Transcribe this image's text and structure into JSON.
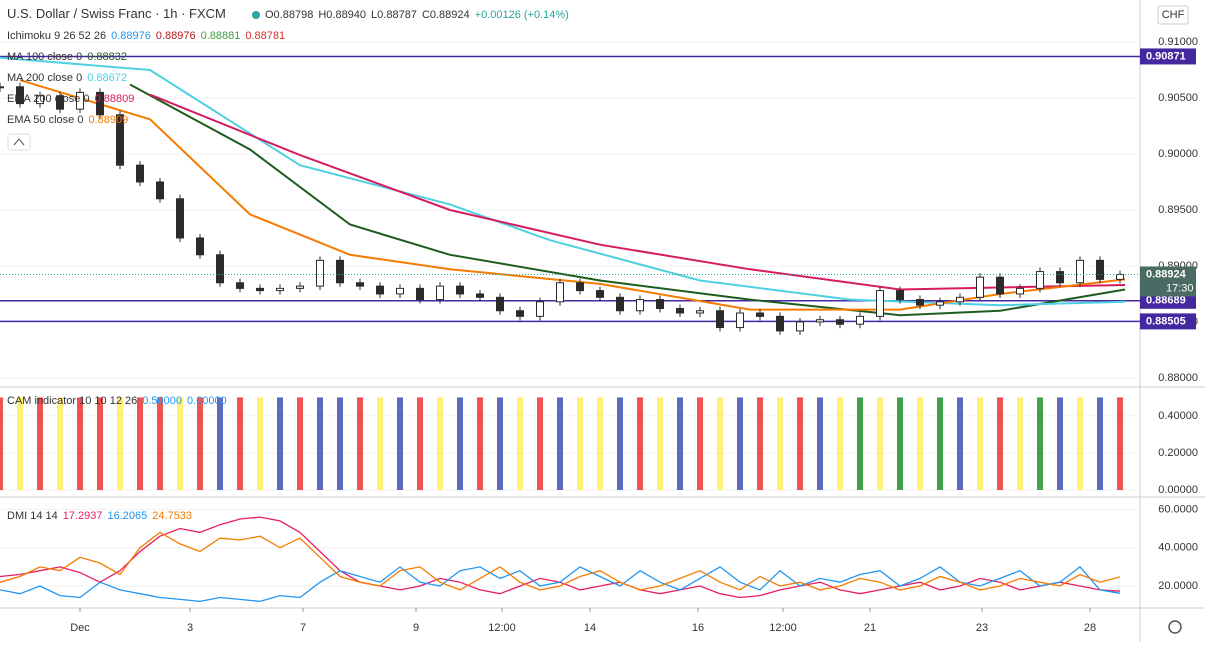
{
  "chart_data": [
    {
      "type": "candlestick",
      "title": "U.S. Dollar / Swiss Franc · 1h · FXCM",
      "ohlc": [
        "O0.88798",
        "H0.88940",
        "L0.88787",
        "C0.88924",
        "+0.00126 (+0.14%)"
      ],
      "currency": "CHF",
      "candle_color": "#2b2b2b",
      "close": [
        0.906,
        0.9045,
        0.9052,
        0.904,
        0.9055,
        0.9035,
        0.899,
        0.8975,
        0.896,
        0.8925,
        0.891,
        0.8885,
        0.888,
        0.8878,
        0.888,
        0.8882,
        0.8905,
        0.8885,
        0.8882,
        0.8875,
        0.888,
        0.887,
        0.8882,
        0.8875,
        0.8872,
        0.886,
        0.8855,
        0.8868,
        0.8885,
        0.8878,
        0.8872,
        0.886,
        0.887,
        0.8862,
        0.8858,
        0.886,
        0.8845,
        0.8858,
        0.8855,
        0.8842,
        0.885,
        0.8852,
        0.8848,
        0.8855,
        0.8878,
        0.887,
        0.8865,
        0.8868,
        0.8872,
        0.889,
        0.8875,
        0.888,
        0.8895,
        0.8885,
        0.8905,
        0.8888,
        0.88924
      ],
      "last_time": "17:30",
      "xlim": [
        0,
        57
      ],
      "ylim": [
        0.87937,
        0.91375
      ],
      "yticks": [
        {
          "value": 0.88,
          "label": "0.88000"
        },
        {
          "value": 0.885,
          "label": "0.88500"
        },
        {
          "value": 0.89,
          "label": "0.89000"
        },
        {
          "value": 0.895,
          "label": "0.89500"
        },
        {
          "value": 0.9,
          "label": "0.90000"
        },
        {
          "value": 0.905,
          "label": "0.90500"
        },
        {
          "value": 0.91,
          "label": "0.91000"
        }
      ],
      "levels": [
        0.90871,
        0.88689,
        0.88505
      ],
      "level_color": "#4527a0",
      "ichimoku": {
        "name": "Ichimoku 9 26 52 26",
        "readings": [
          "0.88976",
          "0.88976",
          "0.88881",
          "0.88781"
        ],
        "colors": [
          "#2196f3",
          "#b71c1c",
          "#43a047",
          "#d32f2f"
        ]
      },
      "series": [
        {
          "name": "MA 100 close 0",
          "reading": "0.88832",
          "color": "#1e5c1e",
          "x": [
            6.5,
            12.5,
            17.5,
            22.5,
            30,
            37.5,
            45,
            50,
            56.25
          ],
          "values": [
            0.9062,
            0.9004,
            0.8937,
            0.891,
            0.8887,
            0.887,
            0.8856,
            0.886,
            0.8879
          ]
        },
        {
          "name": "MA 200 close 0",
          "reading": "0.88672",
          "color": "#4dd0e1",
          "x": [
            0,
            7.5,
            15,
            22.5,
            27.5,
            35,
            42.5,
            50,
            56.25
          ],
          "values": [
            0.9086,
            0.9075,
            0.899,
            0.8955,
            0.8923,
            0.8887,
            0.887,
            0.8865,
            0.8868
          ]
        },
        {
          "name": "EMA 200 close 0",
          "reading": "0.88809",
          "color": "#d81b60",
          "x": [
            7.5,
            15,
            22.5,
            30,
            37.5,
            45,
            56.25
          ],
          "values": [
            0.9053,
            0.8999,
            0.895,
            0.8919,
            0.8897,
            0.8879,
            0.8883
          ]
        },
        {
          "name": "EMA 50 close 0",
          "reading": "0.88909",
          "color": "#f57c00",
          "x": [
            1,
            7.5,
            12.5,
            17.5,
            22.5,
            30,
            37.5,
            45,
            50,
            56.25
          ],
          "values": [
            0.9066,
            0.9031,
            0.8946,
            0.891,
            0.8897,
            0.8884,
            0.8861,
            0.8861,
            0.8875,
            0.8888
          ]
        }
      ]
    },
    {
      "type": "bar",
      "title": "CAM indicator 10 10 12 26",
      "readings": [
        "0.50000",
        "0.00000"
      ],
      "reading_color": "#2196f3",
      "xlim": [
        0,
        57
      ],
      "ylim": [
        -0.027,
        0.54
      ],
      "yticks": [
        {
          "value": 0,
          "label": "0.00000"
        },
        {
          "value": 0.2,
          "label": "0.20000"
        },
        {
          "value": 0.4,
          "label": "0.40000"
        }
      ],
      "values": [
        0.5,
        0.5,
        0.5,
        0.5,
        0.5,
        0.5,
        0.5,
        0.5,
        0.5,
        0.5,
        0.5,
        0.5,
        0.5,
        0.5,
        0.5,
        0.5,
        0.5,
        0.5,
        0.5,
        0.5,
        0.5,
        0.5,
        0.5,
        0.5,
        0.5,
        0.5,
        0.5,
        0.5,
        0.5,
        0.5,
        0.5,
        0.5,
        0.5,
        0.5,
        0.5,
        0.5,
        0.5,
        0.5,
        0.5,
        0.5,
        0.5,
        0.5,
        0.5,
        0.5,
        0.5,
        0.5,
        0.5,
        0.5,
        0.5,
        0.5,
        0.5,
        0.5,
        0.5,
        0.5,
        0.5,
        0.5,
        0.5
      ],
      "colors": [
        "#ef5350",
        "#fff176",
        "#ef5350",
        "#fff176",
        "#ef5350",
        "#ef5350",
        "#fff176",
        "#ef5350",
        "#ef5350",
        "#fff176",
        "#ef5350",
        "#5c6bc0",
        "#ef5350",
        "#fff176",
        "#5c6bc0",
        "#ef5350",
        "#5c6bc0",
        "#5c6bc0",
        "#ef5350",
        "#fff176",
        "#5c6bc0",
        "#ef5350",
        "#fff176",
        "#5c6bc0",
        "#ef5350",
        "#5c6bc0",
        "#fff176",
        "#ef5350",
        "#5c6bc0",
        "#fff176",
        "#fff176",
        "#5c6bc0",
        "#ef5350",
        "#fff176",
        "#5c6bc0",
        "#ef5350",
        "#fff176",
        "#5c6bc0",
        "#ef5350",
        "#fff176",
        "#ef5350",
        "#5c6bc0",
        "#fff176",
        "#43a047",
        "#fff176",
        "#43a047",
        "#fff176",
        "#43a047",
        "#5c6bc0",
        "#fff176",
        "#ef5350",
        "#fff176",
        "#43a047",
        "#5c6bc0",
        "#fff176",
        "#5c6bc0",
        "#ef5350"
      ]
    },
    {
      "type": "line",
      "title": "DMI 14 14",
      "xlim": [
        0,
        57
      ],
      "ylim": [
        10.1,
        64.9
      ],
      "yticks": [
        {
          "value": 20,
          "label": "20.0000"
        },
        {
          "value": 40,
          "label": "40.0000"
        },
        {
          "value": 60,
          "label": "60.0000"
        }
      ],
      "xticks": [
        {
          "value": 4,
          "label": "Dec"
        },
        {
          "value": 9.5,
          "label": "3"
        },
        {
          "value": 15.15,
          "label": "7"
        },
        {
          "value": 20.8,
          "label": "9"
        },
        {
          "value": 25.1,
          "label": "12:00"
        },
        {
          "value": 29.5,
          "label": "14"
        },
        {
          "value": 34.9,
          "label": "16"
        },
        {
          "value": 39.15,
          "label": "12:00"
        },
        {
          "value": 43.5,
          "label": "21"
        },
        {
          "value": 49.1,
          "label": "23"
        },
        {
          "value": 54.5,
          "label": "28"
        }
      ],
      "series": [
        {
          "name": "17.2937",
          "color": "#e91e63",
          "values": [
            25,
            26,
            28,
            30,
            27,
            22,
            28,
            38,
            46,
            50,
            48,
            52,
            55,
            56,
            54,
            48,
            38,
            28,
            22,
            20,
            18,
            20,
            24,
            22,
            18,
            16,
            20,
            24,
            22,
            18,
            20,
            22,
            18,
            16,
            18,
            20,
            16,
            14,
            15,
            18,
            20,
            22,
            18,
            16,
            18,
            20,
            22,
            18,
            20,
            24,
            22,
            18,
            20,
            22,
            20,
            18,
            17.2937
          ]
        },
        {
          "name": "16.2065",
          "color": "#2196f3",
          "values": [
            18,
            16,
            20,
            15,
            14,
            22,
            18,
            16,
            14,
            13,
            12,
            14,
            13,
            12,
            15,
            14,
            22,
            28,
            25,
            22,
            30,
            22,
            20,
            28,
            30,
            24,
            28,
            20,
            22,
            30,
            25,
            20,
            28,
            22,
            18,
            24,
            30,
            22,
            18,
            28,
            20,
            24,
            22,
            26,
            28,
            20,
            24,
            30,
            22,
            20,
            24,
            28,
            20,
            22,
            30,
            18,
            16.2065
          ]
        },
        {
          "name": "24.7533",
          "color": "#f57c00",
          "values": [
            22,
            25,
            30,
            28,
            35,
            32,
            26,
            40,
            48,
            42,
            38,
            45,
            44,
            46,
            40,
            45,
            35,
            25,
            22,
            20,
            28,
            30,
            22,
            18,
            24,
            30,
            22,
            18,
            20,
            25,
            28,
            22,
            18,
            20,
            24,
            28,
            22,
            18,
            25,
            20,
            22,
            18,
            20,
            24,
            22,
            18,
            20,
            25,
            22,
            18,
            20,
            24,
            22,
            20,
            26,
            22,
            24.7533
          ]
        }
      ]
    }
  ]
}
